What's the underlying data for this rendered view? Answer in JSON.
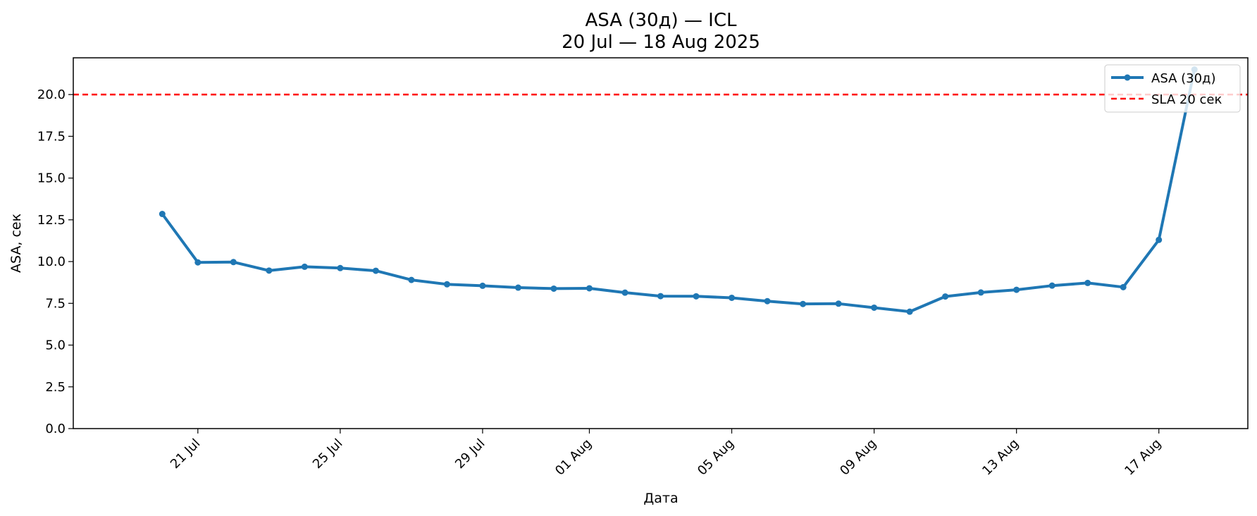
{
  "chart_data": {
    "type": "line",
    "title": "ASA (30д) — ICL",
    "subtitle": "20 Jul — 18 Aug 2025",
    "xlabel": "Дата",
    "ylabel": "ASA, сек",
    "ylim": [
      0,
      22.2
    ],
    "yticks": [
      0.0,
      2.5,
      5.0,
      7.5,
      10.0,
      12.5,
      15.0,
      17.5,
      20.0
    ],
    "ytick_labels": [
      "0.0",
      "2.5",
      "5.0",
      "7.5",
      "10.0",
      "12.5",
      "15.0",
      "17.5",
      "20.0"
    ],
    "xlim": [
      "2025-07-17T12:00",
      "2025-08-19T12:00"
    ],
    "xticks": [
      "2025-07-21",
      "2025-07-25",
      "2025-07-29",
      "2025-08-01",
      "2025-08-05",
      "2025-08-09",
      "2025-08-13",
      "2025-08-17"
    ],
    "xtick_labels": [
      "21 Jul",
      "25 Jul",
      "29 Jul",
      "01 Aug",
      "05 Aug",
      "09 Aug",
      "13 Aug",
      "17 Aug"
    ],
    "grid": false,
    "legend_position": "top-right",
    "x": [
      "2025-07-20",
      "2025-07-21",
      "2025-07-22",
      "2025-07-23",
      "2025-07-24",
      "2025-07-25",
      "2025-07-26",
      "2025-07-27",
      "2025-07-28",
      "2025-07-29",
      "2025-07-30",
      "2025-07-31",
      "2025-08-01",
      "2025-08-02",
      "2025-08-03",
      "2025-08-04",
      "2025-08-05",
      "2025-08-06",
      "2025-08-07",
      "2025-08-08",
      "2025-08-09",
      "2025-08-10",
      "2025-08-11",
      "2025-08-12",
      "2025-08-13",
      "2025-08-14",
      "2025-08-15",
      "2025-08-16",
      "2025-08-17",
      "2025-08-18"
    ],
    "series": [
      {
        "name": "ASA (30д)",
        "color": "#1f77b4",
        "values": [
          12.85,
          9.95,
          9.97,
          9.46,
          9.69,
          9.61,
          9.45,
          8.9,
          8.64,
          8.55,
          8.44,
          8.38,
          8.4,
          8.14,
          7.93,
          7.92,
          7.83,
          7.63,
          7.46,
          7.48,
          7.24,
          7.0,
          7.91,
          8.15,
          8.31,
          8.56,
          8.72,
          8.47,
          11.3,
          21.5
        ]
      }
    ],
    "reference_lines": [
      {
        "name": "SLA 20 сек",
        "y": 20,
        "color": "#ff0000",
        "style": "dashed"
      }
    ]
  }
}
